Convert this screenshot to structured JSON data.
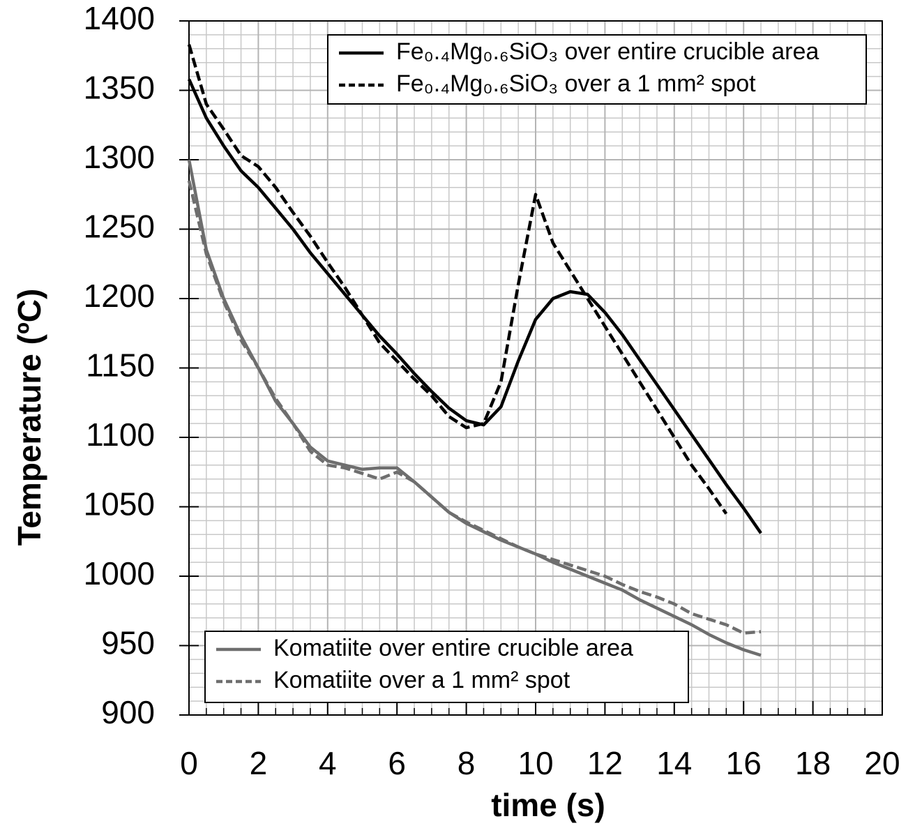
{
  "chart_data": {
    "type": "line",
    "xlabel": "time (s)",
    "ylabel": "Temperature (ºC)",
    "x": [
      0,
      0.5,
      1,
      1.5,
      2,
      2.5,
      3,
      3.5,
      4,
      4.5,
      5,
      5.5,
      6,
      6.5,
      7,
      7.5,
      8,
      8.5,
      9,
      9.5,
      10,
      10.5,
      11,
      11.5,
      12,
      12.5,
      13,
      13.5,
      14,
      14.5,
      15,
      15.5,
      16,
      16.5
    ],
    "xlim": [
      0,
      20
    ],
    "xticks": [
      0,
      2,
      4,
      6,
      8,
      10,
      12,
      14,
      16,
      18,
      20
    ],
    "ylim": [
      900,
      1400
    ],
    "yticks": [
      900,
      950,
      1000,
      1050,
      1100,
      1150,
      1200,
      1250,
      1300,
      1350,
      1400
    ],
    "grid": true,
    "series": [
      {
        "name": "Fe₀.₄Mg₀.₆SiO₃ over entire crucible area",
        "color": "#000000",
        "dash": false,
        "legend": "upper right",
        "values": [
          1358,
          1330,
          1310,
          1292,
          1280,
          1265,
          1250,
          1233,
          1218,
          1203,
          1188,
          1173,
          1160,
          1146,
          1133,
          1121,
          1112,
          1109,
          1122,
          1155,
          1185,
          1200,
          1205,
          1203,
          1190,
          1174,
          1156,
          1138,
          1120,
          1102,
          1084,
          1066,
          1049,
          1031
        ]
      },
      {
        "name": "Fe₀.₄Mg₀.₆SiO₃ over a 1 mm² spot",
        "color": "#000000",
        "dash": true,
        "legend": "upper right",
        "values": [
          1383,
          1340,
          1322,
          1303,
          1295,
          1280,
          1262,
          1245,
          1226,
          1208,
          1188,
          1168,
          1155,
          1142,
          1130,
          1115,
          1107,
          1110,
          1140,
          1210,
          1275,
          1240,
          1220,
          1200,
          1180,
          1160,
          1140,
          1120,
          1100,
          1080,
          1063,
          1045,
          null,
          null
        ]
      },
      {
        "name": "Komatiite over entire crucible area",
        "color": "#6e6e6e",
        "dash": false,
        "legend": "lower left",
        "values": [
          1300,
          1235,
          1200,
          1173,
          1150,
          1126,
          1110,
          1093,
          1083,
          1080,
          1077,
          1078,
          1078,
          1068,
          1057,
          1046,
          1038,
          1032,
          1026,
          1021,
          1016,
          1010,
          1005,
          1000,
          995,
          990,
          983,
          977,
          971,
          965,
          958,
          952,
          947,
          943
        ]
      },
      {
        "name": "Komatiite over a 1 mm² spot",
        "color": "#6e6e6e",
        "dash": true,
        "legend": "lower left",
        "values": [
          1285,
          1232,
          1198,
          1170,
          1150,
          1128,
          1110,
          1090,
          1080,
          1078,
          1074,
          1070,
          1075,
          1068,
          1057,
          1046,
          1039,
          1033,
          1027,
          1021,
          1016,
          1012,
          1008,
          1004,
          1000,
          994,
          989,
          985,
          980,
          973,
          969,
          965,
          959,
          960
        ]
      }
    ]
  }
}
